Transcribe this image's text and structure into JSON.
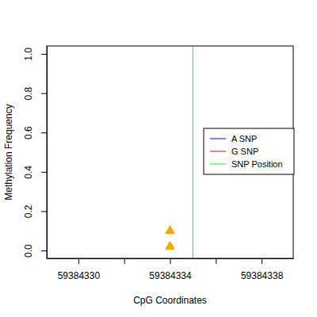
{
  "chart_data": {
    "type": "scatter",
    "x_label": "CpG Coordinates",
    "y_label": "Methylation Frequency",
    "x": [
      59384334,
      59384334
    ],
    "values": [
      0.1,
      0.02
    ],
    "color": "#FFA500",
    "marker": "triangle",
    "series": [
      {
        "name": "A SNP",
        "color": "#0000FF",
        "type": "line",
        "x": [],
        "values": []
      },
      {
        "name": "G SNP",
        "color": "#FF0000",
        "type": "line",
        "x": [],
        "values": []
      },
      {
        "name": "SNP Position",
        "color": "#00FF00",
        "type": "vline",
        "x": [
          59384335
        ]
      }
    ],
    "xlim": [
      59384328.62,
      59384339.38
    ],
    "xticks": [
      59384330,
      {
        "value": 59384332,
        "label": null
      },
      59384334,
      {
        "value": 59384336,
        "label": null
      },
      59384338
    ],
    "ylim": [
      -0.04,
      1.04
    ],
    "yticks": [
      {
        "value": 0,
        "label": "0.0"
      },
      0.2,
      0.4,
      0.6,
      0.8,
      {
        "value": 1,
        "label": "1.0"
      }
    ],
    "legend": "right"
  }
}
